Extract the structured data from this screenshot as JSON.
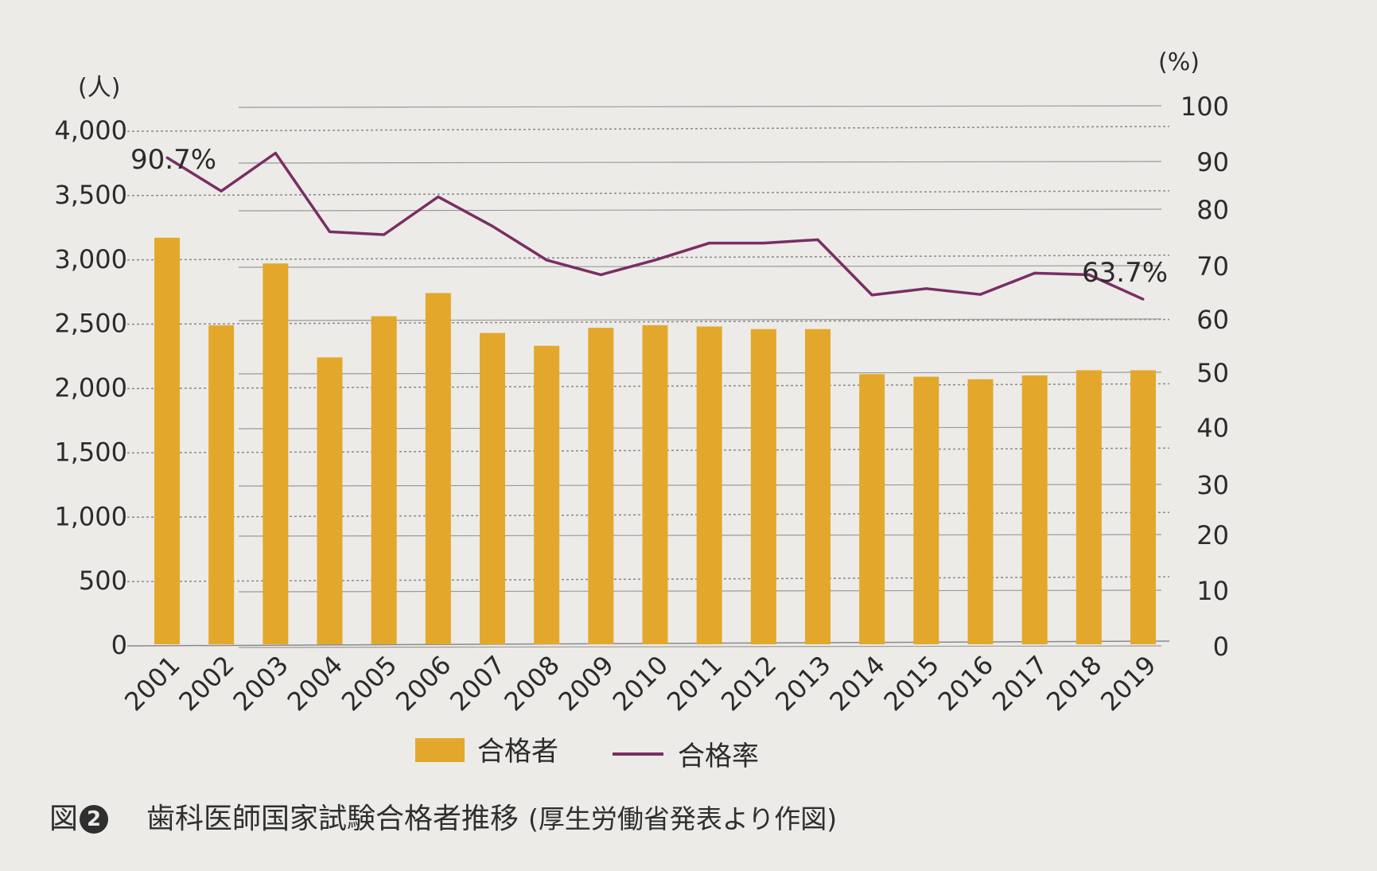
{
  "chart_data": {
    "type": "bar",
    "categories": [
      "2001",
      "2002",
      "2003",
      "2004",
      "2005",
      "2006",
      "2007",
      "2008",
      "2009",
      "2010",
      "2011",
      "2012",
      "2013",
      "2014",
      "2015",
      "2016",
      "2017",
      "2018",
      "2019"
    ],
    "series": [
      {
        "name": "合格者",
        "type": "bar",
        "axis": "left",
        "color": "#e3a82b",
        "values": [
          3160,
          2480,
          2960,
          2230,
          2550,
          2730,
          2420,
          2320,
          2460,
          2480,
          2470,
          2450,
          2450,
          2100,
          2080,
          2060,
          2090,
          2130,
          2130
        ]
      },
      {
        "name": "合格率",
        "type": "line",
        "axis": "right",
        "color": "#7a2e63",
        "values": [
          90.7,
          83.8,
          91.5,
          76.0,
          75.5,
          82.6,
          77.0,
          71.0,
          68.3,
          71.0,
          74.0,
          74.0,
          74.6,
          64.5,
          65.7,
          64.6,
          68.6,
          68.3,
          63.7
        ]
      }
    ],
    "y_left": {
      "unit": "(人)",
      "ylim": [
        0,
        4000
      ],
      "ticks": [
        "0",
        "500",
        "1,000",
        "1,500",
        "2,000",
        "2,500",
        "3,000",
        "3,500",
        "4,000"
      ]
    },
    "y_right": {
      "unit": "(%)",
      "ylim": [
        0,
        100
      ],
      "ticks": [
        "0",
        "10",
        "20",
        "30",
        "40",
        "50",
        "60",
        "70",
        "80",
        "90",
        "100"
      ]
    },
    "annotations": [
      "90.7%",
      "63.7%"
    ],
    "legend": {
      "placement": "bottom",
      "items": [
        "合格者",
        "合格率"
      ]
    },
    "grid": true
  },
  "caption": {
    "label": "図",
    "number": "2",
    "title": "歯科医師国家試験合格者推移",
    "source": "(厚生労働省発表より作図)"
  }
}
